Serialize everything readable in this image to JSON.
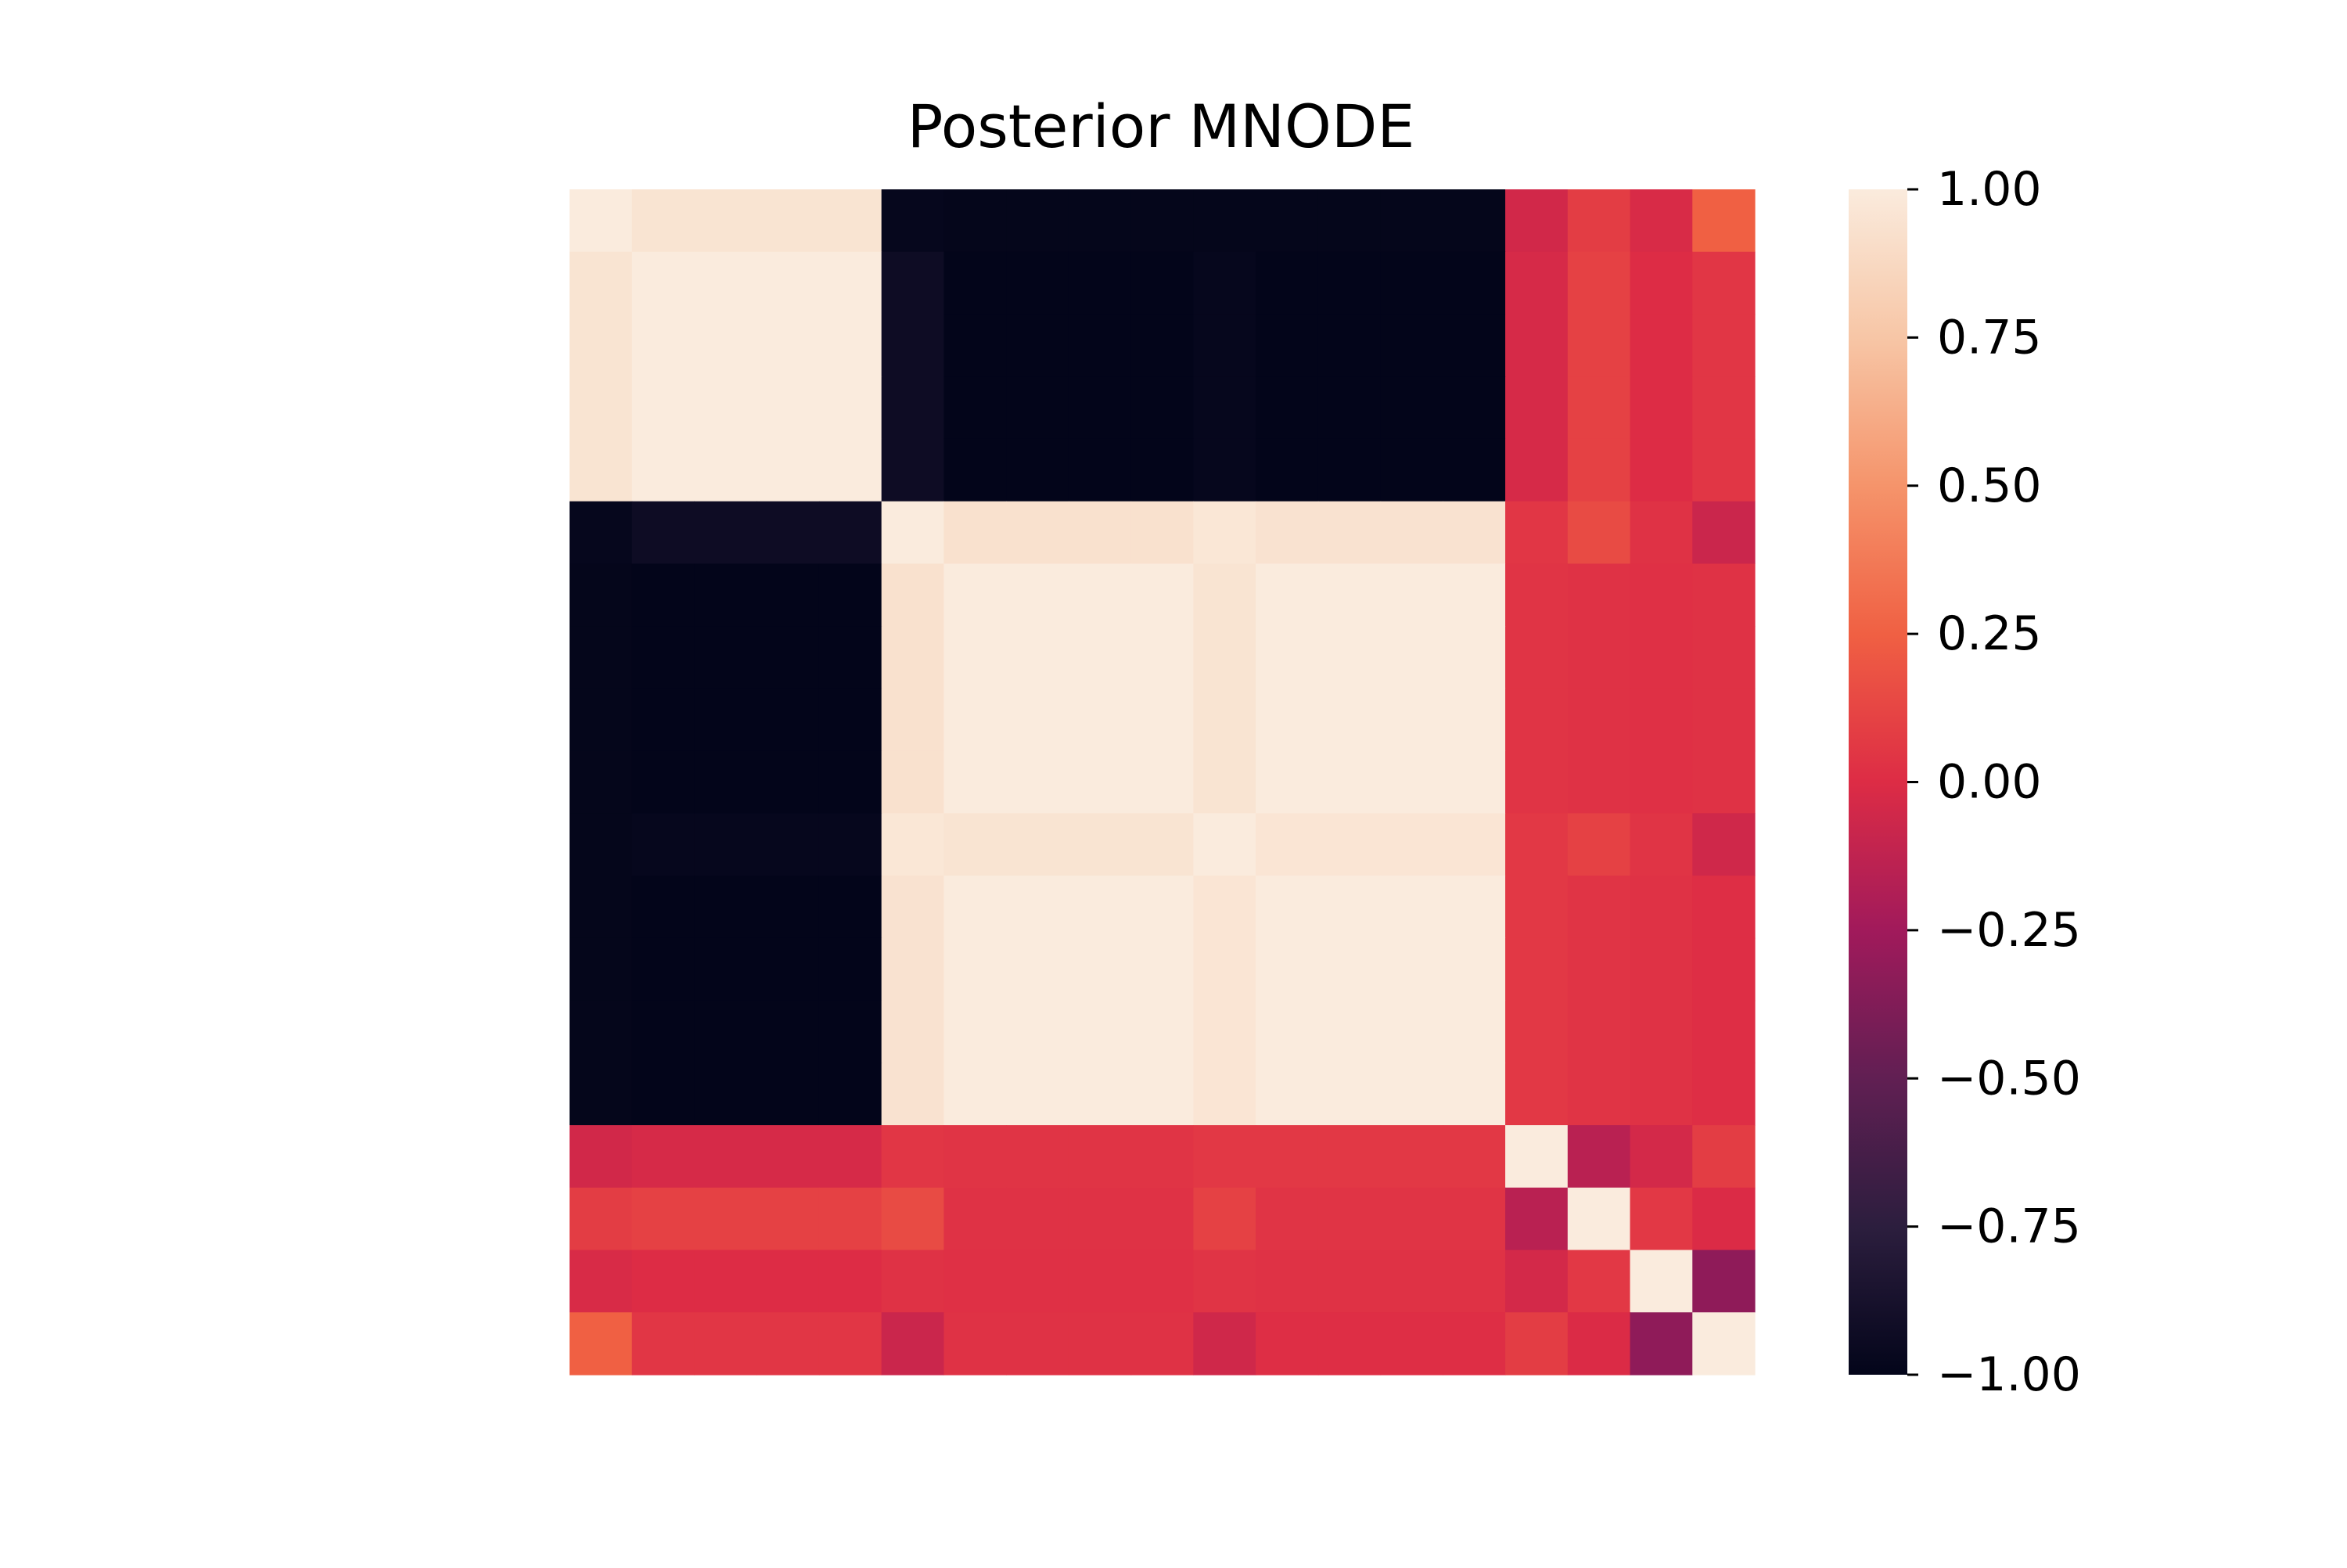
{
  "chart_data": {
    "type": "heatmap",
    "title": "Posterior MNODE",
    "xlabel": "",
    "ylabel": "",
    "xticklabels": [],
    "yticklabels": [],
    "rows": 19,
    "cols": 19,
    "block_groups": [
      [
        0
      ],
      [
        1,
        2,
        3,
        4
      ],
      [
        5
      ],
      [
        6,
        7,
        8,
        9
      ],
      [
        10
      ],
      [
        11,
        12,
        13,
        14
      ],
      [
        15
      ],
      [
        16
      ],
      [
        17
      ],
      [
        18
      ]
    ],
    "block_values": [
      [
        1.0,
        0.95,
        -0.98,
        -0.99,
        -0.99,
        -0.99,
        -0.05,
        0.08,
        -0.02,
        0.25
      ],
      [
        0.95,
        1.0,
        -0.93,
        -1.0,
        -0.98,
        -1.0,
        -0.03,
        0.1,
        0.0,
        0.05
      ],
      [
        -0.98,
        -0.93,
        1.0,
        0.93,
        0.97,
        0.94,
        0.05,
        0.15,
        0.03,
        -0.08
      ],
      [
        -0.99,
        -1.0,
        0.93,
        1.0,
        0.95,
        1.0,
        0.04,
        0.03,
        0.02,
        0.03
      ],
      [
        -0.99,
        -0.98,
        0.97,
        0.95,
        1.0,
        0.96,
        0.06,
        0.1,
        0.04,
        -0.06
      ],
      [
        -0.99,
        -1.0,
        0.94,
        1.0,
        0.96,
        1.0,
        0.06,
        0.04,
        0.03,
        0.01
      ],
      [
        -0.05,
        -0.03,
        0.05,
        0.04,
        0.06,
        0.06,
        1.0,
        -0.15,
        -0.04,
        0.08
      ],
      [
        0.08,
        0.1,
        0.15,
        0.03,
        0.1,
        0.04,
        -0.15,
        1.0,
        0.06,
        -0.01
      ],
      [
        -0.02,
        0.0,
        0.03,
        0.02,
        0.04,
        0.03,
        -0.04,
        0.06,
        1.0,
        -0.32
      ],
      [
        0.25,
        0.05,
        -0.08,
        0.03,
        -0.06,
        0.01,
        0.08,
        -0.01,
        -0.32,
        1.0
      ]
    ],
    "colorbar": {
      "min": -1.0,
      "max": 1.0,
      "ticks": [
        1.0,
        0.75,
        0.5,
        0.25,
        0.0,
        -0.25,
        -0.5,
        -0.75,
        -1.0
      ],
      "ticklabels": [
        "1.00",
        "0.75",
        "0.50",
        "0.25",
        "0.00",
        "−0.25",
        "−0.50",
        "−0.75",
        "−1.00"
      ],
      "colormap": "rocket",
      "colormap_stops": [
        "#03051a",
        "#2c1e3e",
        "#611f53",
        "#a11a5b",
        "#dd2c45",
        "#f06043",
        "#f5946b",
        "#f7c6a6",
        "#faebdd"
      ]
    }
  }
}
